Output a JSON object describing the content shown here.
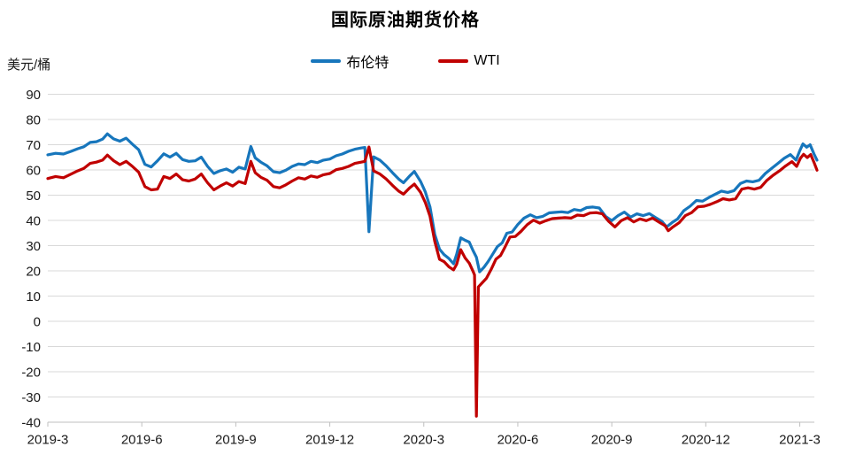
{
  "chart_data": {
    "type": "line",
    "title": "国际原油期货价格",
    "unit_label": "美元/桶",
    "grid": true,
    "legend_position": "top-center",
    "colors": {
      "brent": "#1776BC",
      "wti": "#C00000",
      "gridline": "#D9D9D9",
      "axis": "#BFBFBF",
      "tick_text": "#1a1a1a"
    },
    "legend": [
      {
        "name": "布伦特",
        "color": "#1776BC"
      },
      {
        "name": "WTI",
        "color": "#C00000"
      }
    ],
    "x_unit": "months since 2019-03",
    "xlim": [
      0,
      24.55
    ],
    "x_tick_labels": [
      "2019-3",
      "2019-6",
      "2019-9",
      "2019-12",
      "2020-3",
      "2020-6",
      "2020-9",
      "2020-12",
      "2021-3"
    ],
    "x_tick_interval_months": 3,
    "ylim": [
      -40,
      90
    ],
    "y_tick_step": 10,
    "y_tick_labels": [
      "-40",
      "-30",
      "-20",
      "-10",
      "0",
      "10",
      "20",
      "30",
      "40",
      "50",
      "60",
      "70",
      "80",
      "90"
    ],
    "series": [
      {
        "name": "布伦特",
        "color": "#1776BC",
        "points": [
          [
            0.0,
            66.0
          ],
          [
            0.25,
            66.6
          ],
          [
            0.5,
            66.3
          ],
          [
            0.75,
            67.4
          ],
          [
            0.95,
            68.4
          ],
          [
            1.15,
            69.2
          ],
          [
            1.35,
            70.9
          ],
          [
            1.55,
            71.2
          ],
          [
            1.75,
            72.2
          ],
          [
            1.9,
            74.3
          ],
          [
            2.1,
            72.3
          ],
          [
            2.3,
            71.4
          ],
          [
            2.5,
            72.6
          ],
          [
            2.7,
            70.2
          ],
          [
            2.9,
            68.0
          ],
          [
            3.1,
            62.2
          ],
          [
            3.3,
            61.2
          ],
          [
            3.5,
            63.6
          ],
          [
            3.7,
            66.4
          ],
          [
            3.9,
            65.1
          ],
          [
            4.1,
            66.6
          ],
          [
            4.3,
            64.1
          ],
          [
            4.5,
            63.4
          ],
          [
            4.7,
            63.6
          ],
          [
            4.9,
            65.1
          ],
          [
            5.1,
            61.4
          ],
          [
            5.3,
            58.6
          ],
          [
            5.5,
            59.7
          ],
          [
            5.7,
            60.4
          ],
          [
            5.9,
            59.1
          ],
          [
            6.1,
            61.1
          ],
          [
            6.3,
            60.4
          ],
          [
            6.48,
            69.3
          ],
          [
            6.62,
            64.8
          ],
          [
            6.8,
            63.1
          ],
          [
            7.0,
            61.6
          ],
          [
            7.2,
            59.3
          ],
          [
            7.4,
            58.9
          ],
          [
            7.6,
            59.9
          ],
          [
            7.8,
            61.4
          ],
          [
            8.0,
            62.4
          ],
          [
            8.2,
            62.1
          ],
          [
            8.4,
            63.4
          ],
          [
            8.6,
            62.9
          ],
          [
            8.8,
            63.9
          ],
          [
            9.0,
            64.3
          ],
          [
            9.2,
            65.6
          ],
          [
            9.4,
            66.3
          ],
          [
            9.6,
            67.4
          ],
          [
            9.8,
            68.2
          ],
          [
            10.0,
            68.7
          ],
          [
            10.12,
            68.9
          ],
          [
            10.25,
            35.5
          ],
          [
            10.4,
            65.2
          ],
          [
            10.6,
            63.9
          ],
          [
            10.8,
            61.6
          ],
          [
            11.0,
            58.9
          ],
          [
            11.2,
            56.4
          ],
          [
            11.35,
            54.9
          ],
          [
            11.55,
            57.6
          ],
          [
            11.7,
            59.4
          ],
          [
            11.9,
            55.4
          ],
          [
            12.05,
            51.3
          ],
          [
            12.2,
            45.3
          ],
          [
            12.35,
            34.4
          ],
          [
            12.5,
            28.6
          ],
          [
            12.65,
            26.4
          ],
          [
            12.8,
            24.9
          ],
          [
            12.95,
            22.8
          ],
          [
            13.05,
            26.6
          ],
          [
            13.18,
            33.1
          ],
          [
            13.32,
            32.1
          ],
          [
            13.45,
            31.4
          ],
          [
            13.57,
            28.1
          ],
          [
            13.68,
            25.4
          ],
          [
            13.78,
            19.6
          ],
          [
            13.92,
            21.4
          ],
          [
            14.05,
            23.6
          ],
          [
            14.2,
            26.6
          ],
          [
            14.35,
            29.6
          ],
          [
            14.5,
            31.1
          ],
          [
            14.65,
            34.9
          ],
          [
            14.82,
            35.4
          ],
          [
            15.0,
            38.4
          ],
          [
            15.2,
            40.9
          ],
          [
            15.4,
            42.2
          ],
          [
            15.6,
            41.1
          ],
          [
            15.8,
            41.6
          ],
          [
            16.0,
            43.0
          ],
          [
            16.2,
            43.2
          ],
          [
            16.4,
            43.4
          ],
          [
            16.6,
            43.1
          ],
          [
            16.8,
            44.3
          ],
          [
            17.0,
            43.9
          ],
          [
            17.2,
            45.1
          ],
          [
            17.4,
            45.3
          ],
          [
            17.6,
            44.9
          ],
          [
            17.8,
            41.6
          ],
          [
            18.0,
            39.9
          ],
          [
            18.2,
            41.9
          ],
          [
            18.4,
            43.3
          ],
          [
            18.6,
            41.3
          ],
          [
            18.8,
            42.6
          ],
          [
            19.0,
            41.9
          ],
          [
            19.2,
            42.7
          ],
          [
            19.4,
            41.1
          ],
          [
            19.6,
            39.6
          ],
          [
            19.75,
            37.4
          ],
          [
            19.92,
            39.1
          ],
          [
            20.1,
            40.6
          ],
          [
            20.3,
            43.9
          ],
          [
            20.5,
            45.6
          ],
          [
            20.7,
            47.9
          ],
          [
            20.9,
            47.6
          ],
          [
            21.1,
            49.1
          ],
          [
            21.3,
            50.4
          ],
          [
            21.5,
            51.6
          ],
          [
            21.7,
            51.1
          ],
          [
            21.9,
            51.8
          ],
          [
            22.1,
            54.6
          ],
          [
            22.3,
            55.6
          ],
          [
            22.5,
            55.3
          ],
          [
            22.7,
            55.9
          ],
          [
            22.9,
            58.6
          ],
          [
            23.1,
            60.6
          ],
          [
            23.3,
            62.6
          ],
          [
            23.5,
            64.6
          ],
          [
            23.7,
            66.1
          ],
          [
            23.88,
            63.9
          ],
          [
            24.0,
            67.6
          ],
          [
            24.1,
            70.3
          ],
          [
            24.22,
            69.0
          ],
          [
            24.33,
            70.0
          ],
          [
            24.45,
            66.4
          ],
          [
            24.55,
            63.9
          ]
        ]
      },
      {
        "name": "WTI",
        "color": "#C00000",
        "points": [
          [
            0.0,
            56.6
          ],
          [
            0.25,
            57.4
          ],
          [
            0.5,
            56.9
          ],
          [
            0.75,
            58.4
          ],
          [
            0.95,
            59.6
          ],
          [
            1.15,
            60.6
          ],
          [
            1.35,
            62.6
          ],
          [
            1.55,
            63.1
          ],
          [
            1.75,
            63.9
          ],
          [
            1.9,
            65.9
          ],
          [
            2.1,
            63.7
          ],
          [
            2.3,
            62.1
          ],
          [
            2.5,
            63.4
          ],
          [
            2.7,
            61.4
          ],
          [
            2.9,
            59.1
          ],
          [
            3.1,
            53.4
          ],
          [
            3.3,
            52.1
          ],
          [
            3.5,
            52.4
          ],
          [
            3.7,
            57.4
          ],
          [
            3.9,
            56.6
          ],
          [
            4.1,
            58.4
          ],
          [
            4.3,
            56.1
          ],
          [
            4.5,
            55.6
          ],
          [
            4.7,
            56.4
          ],
          [
            4.9,
            58.4
          ],
          [
            5.1,
            54.9
          ],
          [
            5.3,
            52.1
          ],
          [
            5.5,
            53.6
          ],
          [
            5.7,
            54.9
          ],
          [
            5.9,
            53.6
          ],
          [
            6.1,
            55.4
          ],
          [
            6.3,
            54.6
          ],
          [
            6.48,
            63.4
          ],
          [
            6.62,
            58.9
          ],
          [
            6.8,
            57.1
          ],
          [
            7.0,
            55.9
          ],
          [
            7.2,
            53.4
          ],
          [
            7.4,
            52.9
          ],
          [
            7.6,
            54.1
          ],
          [
            7.8,
            55.6
          ],
          [
            8.0,
            56.9
          ],
          [
            8.2,
            56.4
          ],
          [
            8.4,
            57.6
          ],
          [
            8.6,
            57.1
          ],
          [
            8.8,
            58.1
          ],
          [
            9.0,
            58.6
          ],
          [
            9.2,
            60.1
          ],
          [
            9.4,
            60.6
          ],
          [
            9.6,
            61.4
          ],
          [
            9.8,
            62.6
          ],
          [
            10.0,
            63.1
          ],
          [
            10.12,
            63.4
          ],
          [
            10.25,
            69.1
          ],
          [
            10.4,
            59.6
          ],
          [
            10.6,
            58.4
          ],
          [
            10.8,
            56.4
          ],
          [
            11.0,
            53.9
          ],
          [
            11.2,
            51.6
          ],
          [
            11.35,
            50.4
          ],
          [
            11.55,
            52.9
          ],
          [
            11.7,
            54.4
          ],
          [
            11.9,
            51.1
          ],
          [
            12.05,
            47.1
          ],
          [
            12.2,
            41.6
          ],
          [
            12.35,
            31.6
          ],
          [
            12.5,
            24.6
          ],
          [
            12.65,
            23.6
          ],
          [
            12.8,
            21.6
          ],
          [
            12.95,
            20.4
          ],
          [
            13.05,
            22.6
          ],
          [
            13.18,
            28.4
          ],
          [
            13.32,
            25.1
          ],
          [
            13.45,
            23.1
          ],
          [
            13.57,
            19.9
          ],
          [
            13.62,
            18.4
          ],
          [
            13.68,
            -37.6
          ],
          [
            13.74,
            13.6
          ],
          [
            13.85,
            15.1
          ],
          [
            14.0,
            17.1
          ],
          [
            14.15,
            20.6
          ],
          [
            14.3,
            24.6
          ],
          [
            14.45,
            26.1
          ],
          [
            14.6,
            29.6
          ],
          [
            14.75,
            33.4
          ],
          [
            14.92,
            33.6
          ],
          [
            15.1,
            35.6
          ],
          [
            15.3,
            38.3
          ],
          [
            15.5,
            40.1
          ],
          [
            15.7,
            38.9
          ],
          [
            15.9,
            39.9
          ],
          [
            16.1,
            40.7
          ],
          [
            16.3,
            40.9
          ],
          [
            16.5,
            41.1
          ],
          [
            16.7,
            40.9
          ],
          [
            16.9,
            42.1
          ],
          [
            17.1,
            41.9
          ],
          [
            17.3,
            42.9
          ],
          [
            17.5,
            43.1
          ],
          [
            17.7,
            42.6
          ],
          [
            17.9,
            39.6
          ],
          [
            18.1,
            37.4
          ],
          [
            18.3,
            39.9
          ],
          [
            18.5,
            41.1
          ],
          [
            18.7,
            39.4
          ],
          [
            18.9,
            40.6
          ],
          [
            19.1,
            39.9
          ],
          [
            19.3,
            40.9
          ],
          [
            19.5,
            39.4
          ],
          [
            19.7,
            37.9
          ],
          [
            19.8,
            35.9
          ],
          [
            19.95,
            37.4
          ],
          [
            20.15,
            39.1
          ],
          [
            20.35,
            41.9
          ],
          [
            20.55,
            43.1
          ],
          [
            20.75,
            45.4
          ],
          [
            20.95,
            45.6
          ],
          [
            21.15,
            46.4
          ],
          [
            21.35,
            47.4
          ],
          [
            21.55,
            48.6
          ],
          [
            21.75,
            48.1
          ],
          [
            21.95,
            48.6
          ],
          [
            22.15,
            52.4
          ],
          [
            22.35,
            52.9
          ],
          [
            22.55,
            52.4
          ],
          [
            22.75,
            53.1
          ],
          [
            22.95,
            55.9
          ],
          [
            23.15,
            57.9
          ],
          [
            23.35,
            59.6
          ],
          [
            23.55,
            61.6
          ],
          [
            23.75,
            63.3
          ],
          [
            23.9,
            61.4
          ],
          [
            24.02,
            64.6
          ],
          [
            24.12,
            66.2
          ],
          [
            24.24,
            64.9
          ],
          [
            24.35,
            66.1
          ],
          [
            24.45,
            63.1
          ],
          [
            24.55,
            59.9
          ]
        ]
      }
    ]
  }
}
